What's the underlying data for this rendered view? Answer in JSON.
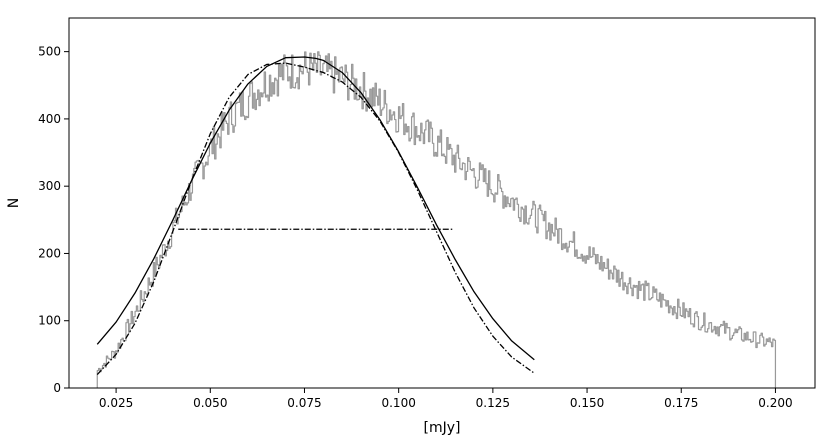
{
  "chart_data": {
    "type": "line",
    "title": "",
    "xlabel": "[mJy]",
    "ylabel": "N",
    "xlim": [
      0.0125,
      0.2105
    ],
    "ylim": [
      0,
      550
    ],
    "grid": false,
    "xticks": [
      0.025,
      0.05,
      0.075,
      0.1,
      0.125,
      0.15,
      0.175,
      0.2
    ],
    "xtick_labels": [
      "0.025",
      "0.050",
      "0.075",
      "0.100",
      "0.125",
      "0.150",
      "0.175",
      "0.200"
    ],
    "yticks": [
      0,
      100,
      200,
      300,
      400,
      500
    ],
    "ytick_labels": [
      "0",
      "100",
      "200",
      "300",
      "400",
      "500"
    ],
    "series": [
      {
        "style": "step",
        "color": "#999999",
        "x": [
          0.02,
          0.025,
          0.03,
          0.035,
          0.04,
          0.045,
          0.05,
          0.055,
          0.06,
          0.065,
          0.07,
          0.075,
          0.08,
          0.085,
          0.09,
          0.095,
          0.1,
          0.105,
          0.11,
          0.115,
          0.12,
          0.125,
          0.13,
          0.135,
          0.14,
          0.145,
          0.15,
          0.155,
          0.16,
          0.165,
          0.17,
          0.175,
          0.18,
          0.185,
          0.19,
          0.195,
          0.2
        ],
        "y": [
          25,
          55,
          110,
          170,
          235,
          300,
          355,
          400,
          430,
          455,
          470,
          475,
          470,
          460,
          445,
          425,
          405,
          385,
          365,
          340,
          320,
          300,
          280,
          260,
          240,
          220,
          200,
          180,
          160,
          145,
          130,
          115,
          100,
          90,
          80,
          72,
          65
        ]
      },
      {
        "style": "solid",
        "color": "#000000",
        "x": [
          0.02,
          0.025,
          0.03,
          0.035,
          0.04,
          0.045,
          0.05,
          0.055,
          0.06,
          0.065,
          0.07,
          0.075,
          0.078,
          0.08,
          0.085,
          0.09,
          0.095,
          0.1,
          0.105,
          0.11,
          0.115,
          0.12,
          0.125,
          0.13,
          0.136
        ],
        "y": [
          65,
          98,
          141,
          192,
          249,
          308,
          364,
          413,
          452,
          478,
          491,
          492,
          490,
          487,
          469,
          439,
          399,
          351,
          298,
          243,
          191,
          143,
          103,
          70,
          42
        ]
      },
      {
        "style": "dashdot",
        "color": "#000000",
        "x": [
          0.02,
          0.025,
          0.03,
          0.035,
          0.04,
          0.045,
          0.05,
          0.055,
          0.06,
          0.065,
          0.07,
          0.075,
          0.078,
          0.08,
          0.085,
          0.09,
          0.095,
          0.1,
          0.105,
          0.11,
          0.115,
          0.12,
          0.125,
          0.13,
          0.136
        ],
        "y": [
          20,
          50,
          96,
          158,
          232,
          308,
          378,
          432,
          466,
          481,
          483,
          477,
          472,
          469,
          455,
          432,
          397,
          350,
          294,
          233,
          172,
          119,
          77,
          46,
          22
        ]
      },
      {
        "style": "dashdot",
        "color": "#000000",
        "x": [
          0.0415,
          0.1145
        ],
        "y": [
          236,
          236
        ]
      }
    ]
  }
}
